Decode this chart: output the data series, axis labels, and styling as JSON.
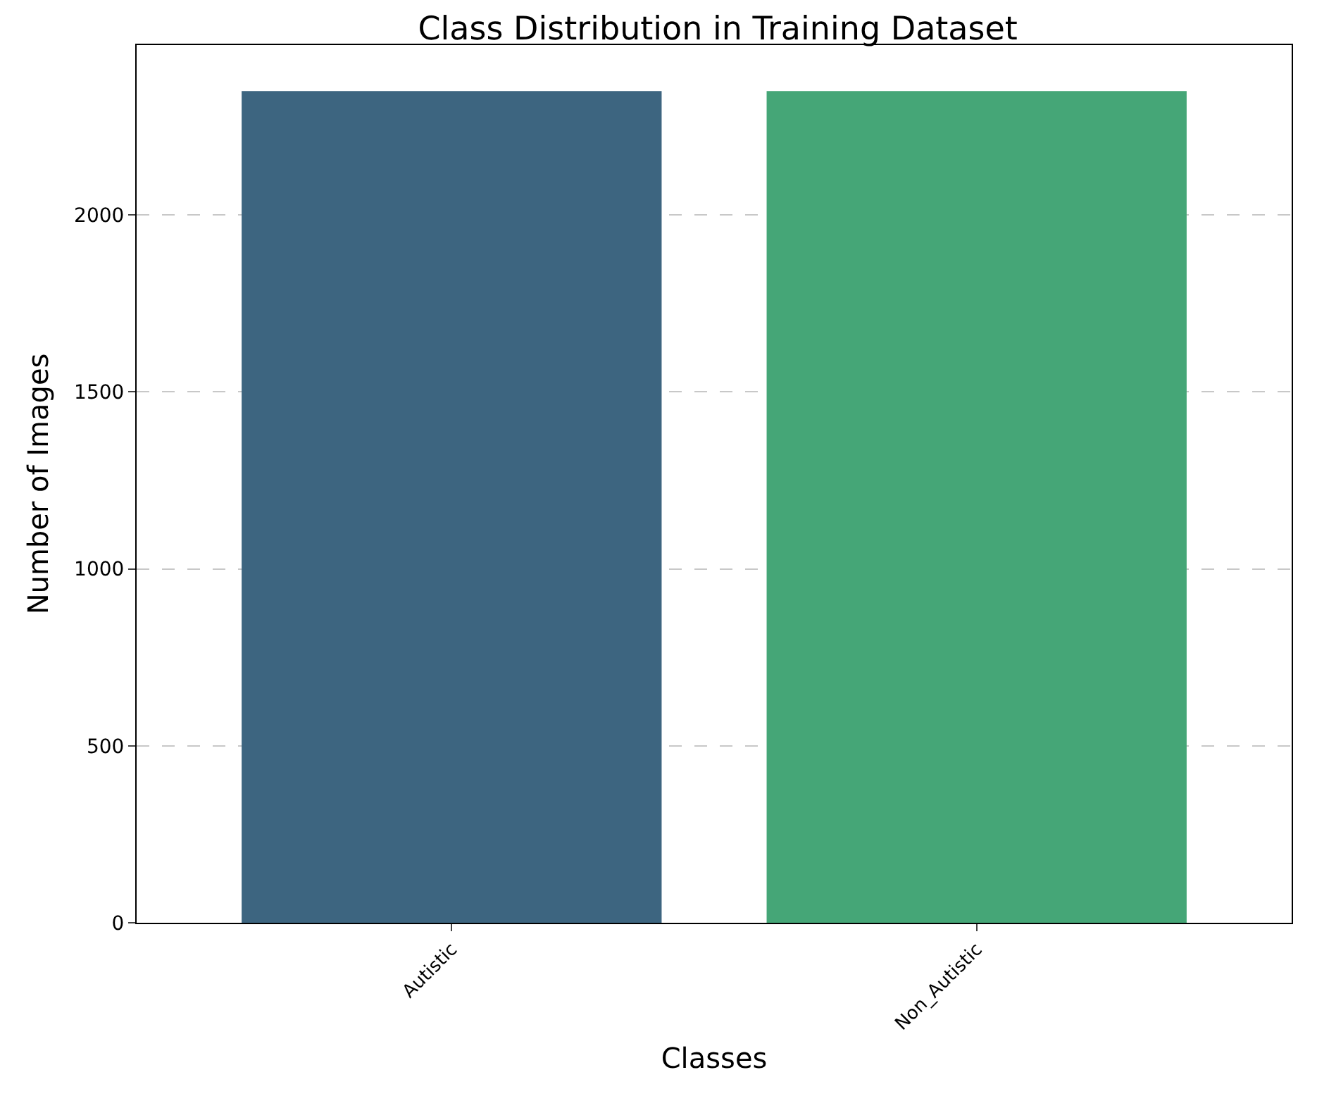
{
  "chart_data": {
    "type": "bar",
    "title": "Class Distribution in Training Dataset",
    "xlabel": "Classes",
    "ylabel": "Number of Images",
    "categories": [
      "Autistic",
      "Non_Autistic"
    ],
    "values": [
      2350,
      2350
    ],
    "colors": [
      "#3d6580",
      "#45a677"
    ],
    "ylim": [
      0,
      2480
    ],
    "yticks": [
      0,
      500,
      1000,
      1500,
      2000
    ],
    "grid": "y"
  }
}
